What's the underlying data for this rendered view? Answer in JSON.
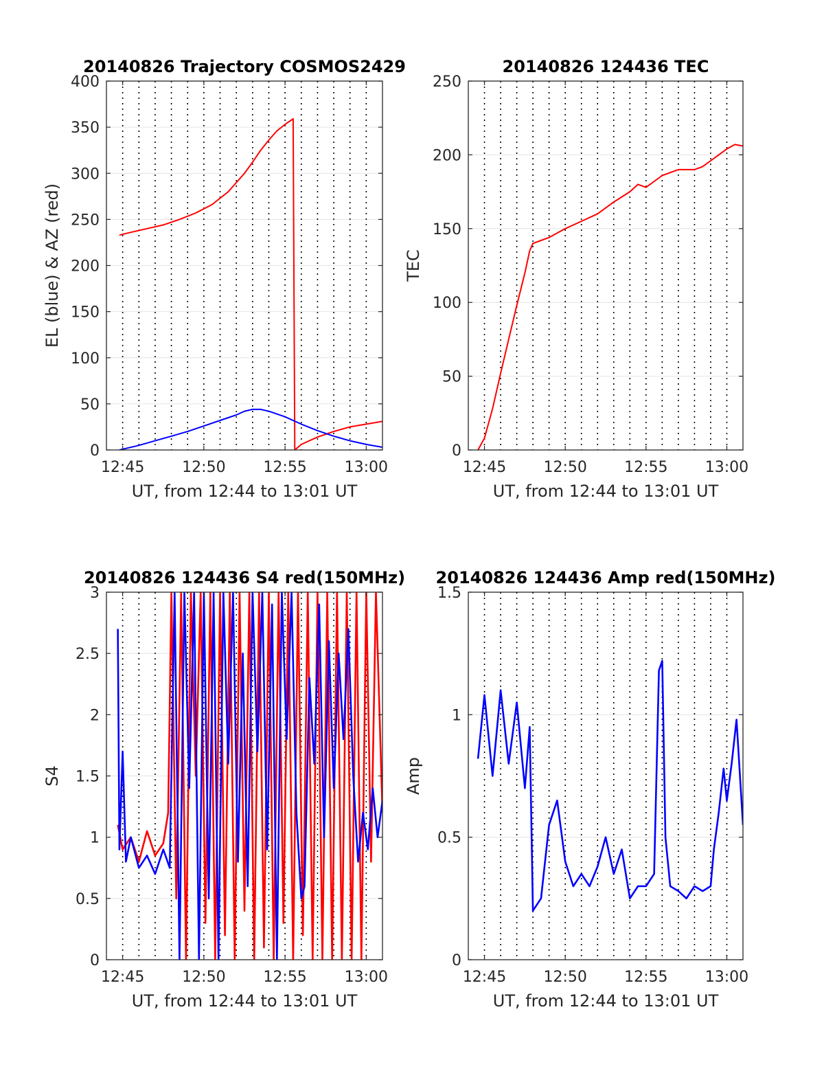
{
  "chart_data": [
    {
      "type": "line",
      "title": "20140826 Trajectory COSMOS2429",
      "xlabel": "UT, from 12:44 to 13:01 UT",
      "ylabel": "EL (blue) & AZ (red)",
      "xlim": [
        44,
        61
      ],
      "ylim": [
        0,
        400
      ],
      "xticks": [
        45,
        50,
        55,
        60
      ],
      "xtick_labels": [
        "12:45",
        "12:50",
        "12:55",
        "13:00"
      ],
      "yticks": [
        0,
        50,
        100,
        150,
        200,
        250,
        300,
        350,
        400
      ],
      "ytick_labels": [
        "0",
        "50",
        "100",
        "150",
        "200",
        "250",
        "300",
        "350",
        "400"
      ],
      "grid": "y-solid-light, x-dotted-every-minute",
      "series": [
        {
          "color": "#ff0000",
          "x": [
            44.8,
            45.5,
            46.5,
            47.5,
            48.5,
            49.5,
            50.5,
            51.5,
            52.5,
            53.0,
            53.5,
            54.0,
            54.5,
            55.0,
            55.5,
            55.55,
            55.6,
            56.0,
            57.0,
            58.0,
            59.0,
            60.0,
            61.0
          ],
          "y": [
            233,
            236,
            240,
            244,
            250,
            257,
            266,
            280,
            300,
            312,
            325,
            336,
            346,
            353,
            359,
            180,
            0,
            6,
            14,
            20,
            25,
            28,
            31
          ]
        },
        {
          "color": "#0000ff",
          "x": [
            44.8,
            46.0,
            47.0,
            48.0,
            49.0,
            50.0,
            51.0,
            52.0,
            52.5,
            53.0,
            53.5,
            54.0,
            55.0,
            56.0,
            57.0,
            58.0,
            59.0,
            60.0,
            61.0
          ],
          "y": [
            0,
            5,
            10,
            15,
            20,
            26,
            32,
            38,
            42,
            44,
            44,
            42,
            36,
            28,
            21,
            15,
            10,
            6,
            3
          ]
        }
      ]
    },
    {
      "type": "line",
      "title": "20140826 124436 TEC",
      "xlabel": "UT, from 12:44 to 13:01 UT",
      "ylabel": "TEC",
      "xlim": [
        44,
        61
      ],
      "ylim": [
        0,
        250
      ],
      "xticks": [
        45,
        50,
        55,
        60
      ],
      "xtick_labels": [
        "12:45",
        "12:50",
        "12:55",
        "13:00"
      ],
      "yticks": [
        0,
        50,
        100,
        150,
        200,
        250
      ],
      "ytick_labels": [
        "0",
        "50",
        "100",
        "150",
        "200",
        "250"
      ],
      "grid": "y-solid-light, x-dotted-every-minute",
      "series": [
        {
          "color": "#ff0000",
          "x": [
            44.6,
            45.0,
            45.5,
            46.0,
            46.5,
            47.0,
            47.5,
            47.8,
            48.0,
            48.5,
            49.0,
            49.5,
            50.0,
            51.0,
            52.0,
            53.0,
            54.0,
            54.5,
            55.0,
            56.0,
            57.0,
            58.0,
            58.5,
            59.0,
            59.5,
            60.0,
            60.5,
            61.0
          ],
          "y": [
            0,
            8,
            28,
            52,
            75,
            98,
            120,
            135,
            140,
            142,
            144,
            147,
            150,
            155,
            160,
            168,
            175,
            180,
            178,
            186,
            190,
            190,
            192,
            196,
            200,
            204,
            207,
            206
          ]
        }
      ]
    },
    {
      "type": "line",
      "title": "20140826 124436 S4 red(150MHz)",
      "xlabel": "UT, from 12:44 to 13:01 UT",
      "ylabel": "S4",
      "xlim": [
        44,
        61
      ],
      "ylim": [
        0,
        3
      ],
      "xticks": [
        45,
        50,
        55,
        60
      ],
      "xtick_labels": [
        "12:45",
        "12:50",
        "12:55",
        "13:00"
      ],
      "yticks": [
        0,
        0.5,
        1,
        1.5,
        2,
        2.5,
        3
      ],
      "ytick_labels": [
        "0",
        "0.5",
        "1",
        "1.5",
        "2",
        "2.5",
        "3"
      ],
      "grid": "y-solid-light, x-dotted-every-minute",
      "series": [
        {
          "color": "#ff0000",
          "x": [
            44.7,
            45.0,
            45.5,
            46.0,
            46.5,
            47.0,
            47.5,
            47.8,
            48.0,
            48.3,
            48.6,
            48.9,
            49.2,
            49.5,
            49.8,
            50.1,
            50.4,
            50.7,
            51.0,
            51.3,
            51.6,
            51.9,
            52.2,
            52.5,
            52.8,
            53.1,
            53.4,
            53.7,
            54.0,
            54.3,
            54.6,
            54.9,
            55.2,
            55.5,
            55.8,
            56.1,
            56.4,
            56.7,
            57.0,
            57.3,
            57.6,
            57.9,
            58.2,
            58.5,
            58.8,
            59.1,
            59.4,
            59.7,
            60.0,
            60.3,
            60.6,
            61.0
          ],
          "y": [
            1.1,
            0.9,
            1.0,
            0.8,
            1.05,
            0.85,
            0.95,
            1.2,
            3.0,
            0.5,
            3.0,
            0.0,
            3.0,
            1.5,
            3.0,
            0.3,
            3.0,
            0.0,
            3.0,
            0.2,
            3.0,
            0.0,
            3.0,
            0.4,
            3.0,
            0.0,
            3.0,
            0.1,
            3.0,
            0.0,
            3.0,
            0.3,
            3.0,
            0.0,
            3.0,
            0.2,
            3.0,
            0.0,
            3.0,
            0.0,
            3.0,
            0.0,
            3.0,
            0.0,
            3.0,
            0.0,
            3.0,
            0.0,
            3.0,
            0.8,
            3.0,
            1.2
          ]
        },
        {
          "color": "#0000ff",
          "x": [
            44.7,
            44.8,
            45.0,
            45.2,
            45.5,
            46.0,
            46.5,
            47.0,
            47.5,
            47.9,
            48.2,
            48.5,
            48.8,
            49.1,
            49.4,
            49.7,
            50.0,
            50.3,
            50.6,
            50.9,
            51.2,
            51.5,
            51.8,
            52.1,
            52.4,
            52.7,
            53.0,
            53.3,
            53.6,
            53.9,
            54.2,
            54.5,
            54.8,
            55.1,
            55.4,
            55.7,
            56.0,
            56.2,
            56.5,
            56.8,
            57.1,
            57.4,
            57.7,
            58.0,
            58.3,
            58.6,
            58.9,
            59.2,
            59.5,
            59.8,
            60.1,
            60.4,
            60.7,
            61.0
          ],
          "y": [
            2.7,
            0.9,
            1.7,
            0.8,
            1.0,
            0.75,
            0.85,
            0.7,
            0.9,
            0.75,
            3.0,
            0.0,
            3.0,
            1.4,
            3.0,
            0.0,
            3.0,
            0.5,
            3.0,
            0.0,
            3.0,
            1.6,
            3.0,
            0.8,
            2.5,
            0.6,
            3.0,
            1.7,
            3.0,
            0.9,
            2.9,
            0.0,
            3.0,
            1.8,
            3.0,
            1.2,
            0.5,
            0.6,
            2.3,
            1.6,
            2.9,
            1.0,
            2.6,
            1.4,
            2.5,
            1.8,
            2.7,
            1.5,
            0.8,
            1.2,
            0.9,
            1.4,
            1.0,
            1.3
          ]
        }
      ]
    },
    {
      "type": "line",
      "title": "20140826 124436 Amp red(150MHz)",
      "xlabel": "UT, from 12:44 to 13:01 UT",
      "ylabel": "Amp",
      "xlim": [
        44,
        61
      ],
      "ylim": [
        0,
        1.5
      ],
      "xticks": [
        45,
        50,
        55,
        60
      ],
      "xtick_labels": [
        "12:45",
        "12:50",
        "12:55",
        "13:00"
      ],
      "yticks": [
        0,
        0.5,
        1,
        1.5
      ],
      "ytick_labels": [
        "0",
        "0.5",
        "1",
        "1.5"
      ],
      "grid": "y-solid-light, x-dotted-every-minute",
      "series": [
        {
          "color": "#0000ff",
          "x": [
            44.6,
            45.0,
            45.5,
            46.0,
            46.5,
            47.0,
            47.5,
            47.8,
            48.0,
            48.5,
            49.0,
            49.5,
            50.0,
            50.5,
            51.0,
            51.5,
            52.0,
            52.5,
            53.0,
            53.5,
            54.0,
            54.5,
            55.0,
            55.5,
            55.8,
            56.0,
            56.2,
            56.5,
            57.0,
            57.5,
            58.0,
            58.5,
            59.0,
            59.2,
            59.5,
            59.8,
            60.0,
            60.3,
            60.6,
            61.0
          ],
          "y": [
            0.82,
            1.08,
            0.75,
            1.1,
            0.8,
            1.05,
            0.7,
            0.95,
            0.2,
            0.25,
            0.55,
            0.65,
            0.4,
            0.3,
            0.35,
            0.3,
            0.38,
            0.5,
            0.35,
            0.45,
            0.25,
            0.3,
            0.3,
            0.35,
            1.18,
            1.22,
            0.5,
            0.3,
            0.28,
            0.25,
            0.3,
            0.28,
            0.3,
            0.45,
            0.6,
            0.78,
            0.65,
            0.8,
            0.98,
            0.55
          ]
        }
      ]
    }
  ]
}
